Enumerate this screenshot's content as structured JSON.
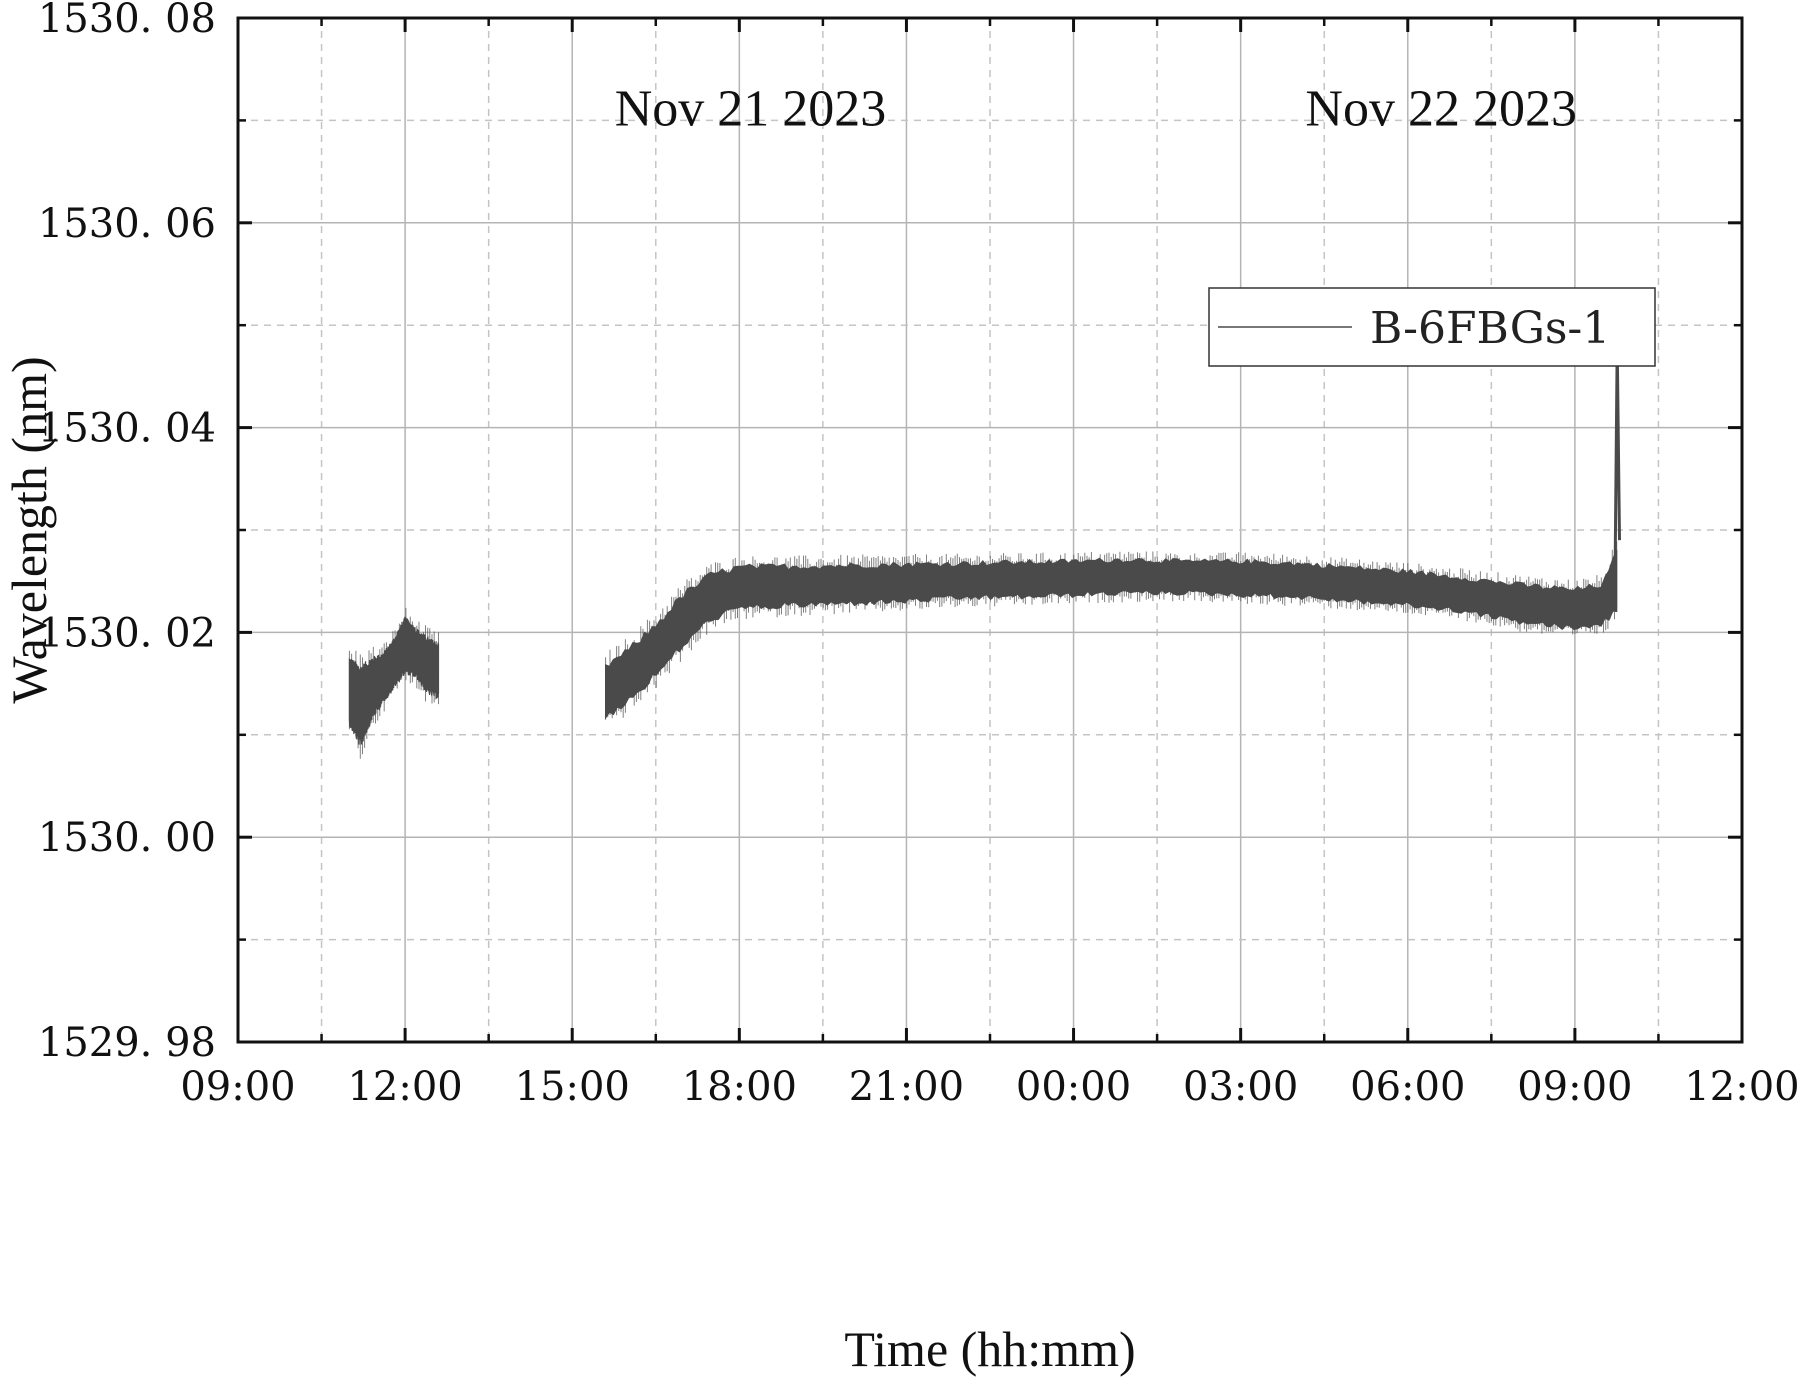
{
  "chart_data": {
    "type": "line",
    "title": "",
    "xlabel": "Time (hh:mm)",
    "ylabel": "Wavelength (nm)",
    "x_unit": "hours",
    "x_range": [
      9,
      36
    ],
    "x_ticks": [
      9,
      12,
      15,
      18,
      21,
      24,
      27,
      30,
      33,
      36
    ],
    "x_tick_labels": [
      "09:00",
      "12:00",
      "15:00",
      "18:00",
      "21:00",
      "00:00",
      "03:00",
      "06:00",
      "09:00",
      "12:00"
    ],
    "ylim": [
      1529.98,
      1530.08
    ],
    "y_ticks": [
      1529.98,
      1530.0,
      1530.02,
      1530.04,
      1530.06,
      1530.08
    ],
    "y_tick_labels": [
      "1529. 98",
      "1530. 00",
      "1530. 02",
      "1530. 04",
      "1530. 06",
      "1530. 08"
    ],
    "grid": true,
    "legend_position": "top-right",
    "annotations": [
      {
        "text": "Nov 21 2023",
        "x": 18.2,
        "y": 1530.0695
      },
      {
        "text": "Nov 22 2023",
        "x": 30.6,
        "y": 1530.0695
      }
    ],
    "series": [
      {
        "name": "B-6FBGs-1",
        "color": "#4a4a4a",
        "segments": [
          {
            "x": [
              11.0,
              11.2,
              11.4,
              11.6,
              11.8,
              12.0,
              12.2,
              12.4,
              12.6
            ],
            "upper": [
              1530.017,
              1530.016,
              1530.017,
              1530.0175,
              1530.019,
              1530.021,
              1530.02,
              1530.019,
              1530.0185
            ],
            "lower": [
              1530.0115,
              1530.0095,
              1530.012,
              1530.0135,
              1530.015,
              1530.0165,
              1530.016,
              1530.0145,
              1530.014
            ]
          },
          {
            "x": [
              15.6,
              16.0,
              16.5,
              17.0,
              17.5,
              18.0,
              19.0,
              20.0,
              21.0,
              22.0,
              23.0,
              24.0,
              25.0,
              26.0,
              27.0,
              28.0,
              29.0,
              30.0,
              31.0,
              32.0,
              33.0,
              33.5,
              33.75
            ],
            "upper": [
              1530.0165,
              1530.018,
              1530.0205,
              1530.0235,
              1530.0255,
              1530.0262,
              1530.0263,
              1530.0264,
              1530.0265,
              1530.0266,
              1530.0267,
              1530.0268,
              1530.027,
              1530.0268,
              1530.0268,
              1530.0266,
              1530.0262,
              1530.0258,
              1530.0252,
              1530.0245,
              1530.024,
              1530.0245,
              1530.0275
            ],
            "lower": [
              1530.012,
              1530.0135,
              1530.016,
              1530.019,
              1530.0215,
              1530.0225,
              1530.0228,
              1530.023,
              1530.0232,
              1530.0235,
              1530.0236,
              1530.0238,
              1530.024,
              1530.024,
              1530.0238,
              1530.0236,
              1530.0232,
              1530.0228,
              1530.0222,
              1530.0212,
              1530.0205,
              1530.021,
              1530.0225
            ]
          }
        ],
        "spike": {
          "x": [
            33.72,
            33.76,
            33.8
          ],
          "y": [
            1530.025,
            1530.048,
            1530.029
          ]
        }
      }
    ]
  }
}
